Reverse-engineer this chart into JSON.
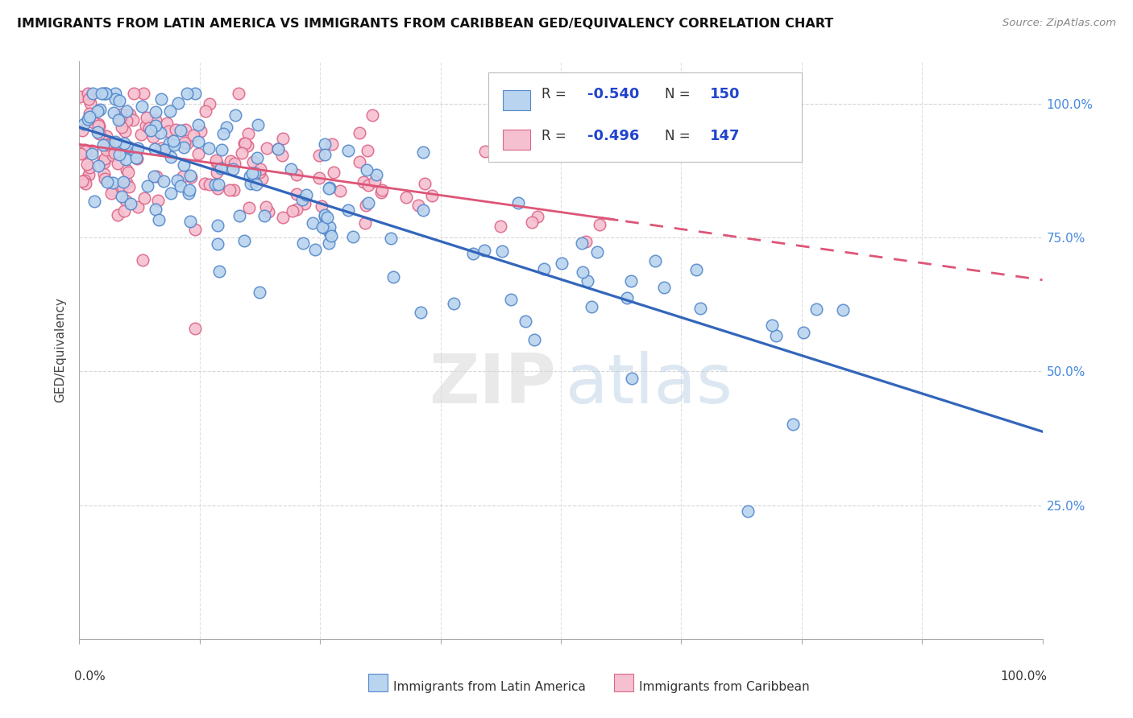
{
  "title": "IMMIGRANTS FROM LATIN AMERICA VS IMMIGRANTS FROM CARIBBEAN GED/EQUIVALENCY CORRELATION CHART",
  "source": "Source: ZipAtlas.com",
  "ylabel": "GED/Equivalency",
  "series1_label": "Immigrants from Latin America",
  "series2_label": "Immigrants from Caribbean",
  "series1_color": "#b8d4ee",
  "series2_color": "#f5c0d0",
  "series1_edge": "#5588cc",
  "series2_edge": "#dd6688",
  "trend1_color": "#3366bb",
  "trend2_color": "#dd5577",
  "R1": -0.54,
  "N1": 150,
  "R2": -0.496,
  "N2": 147,
  "legend_text_color": "#2244cc",
  "background_color": "#ffffff",
  "grid_color": "#cccccc",
  "ytick_color": "#4488dd",
  "title_color": "#111111",
  "source_color": "#888888"
}
